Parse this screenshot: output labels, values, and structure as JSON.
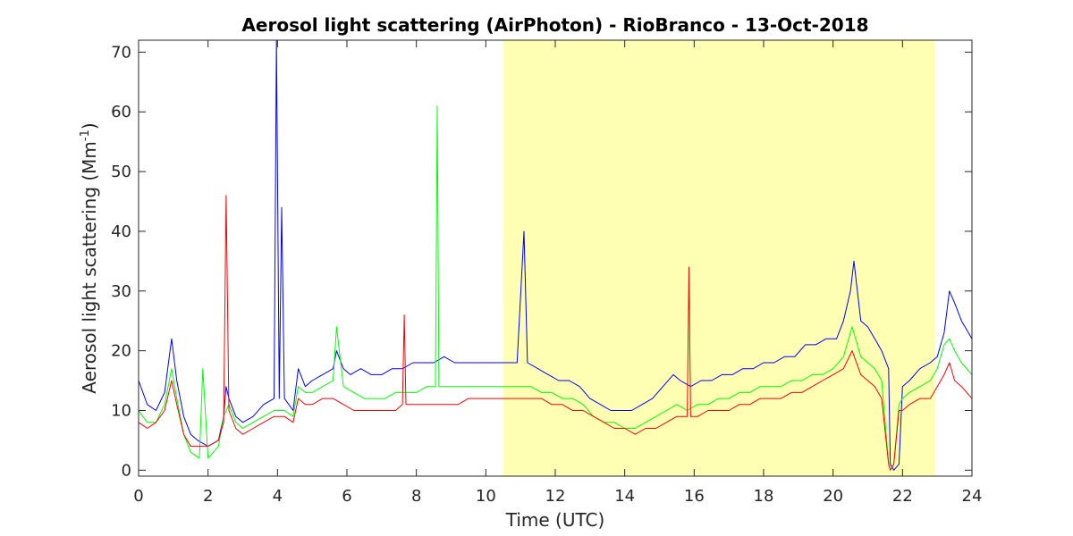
{
  "chart_data": {
    "type": "line",
    "title": "Aerosol light scattering (AirPhoton) - RioBranco - 13-Oct-2018",
    "xlabel": "Time (UTC)",
    "ylabel_main": "Aerosol light scattering (Mm",
    "ylabel_sup": "-1",
    "ylabel_close": ")",
    "xlim": [
      0,
      24
    ],
    "ylim": [
      -1,
      72
    ],
    "xticks": [
      0,
      2,
      4,
      6,
      8,
      10,
      12,
      14,
      16,
      18,
      20,
      22,
      24
    ],
    "yticks": [
      0,
      10,
      20,
      30,
      40,
      50,
      60,
      70
    ],
    "highlight_span": [
      10.5,
      22.95
    ],
    "highlight_color": "#ffffb3",
    "grid": false,
    "series": [
      {
        "color": "#0000ff",
        "x": [
          0.0,
          0.25,
          0.5,
          0.75,
          0.95,
          1.1,
          1.3,
          1.5,
          1.7,
          2.0,
          2.3,
          2.45,
          2.52,
          2.6,
          2.8,
          3.0,
          3.3,
          3.6,
          3.9,
          3.97,
          4.05,
          4.12,
          4.2,
          4.45,
          4.6,
          4.8,
          5.0,
          5.3,
          5.6,
          5.7,
          5.9,
          6.1,
          6.4,
          6.7,
          7.0,
          7.3,
          7.6,
          7.9,
          8.2,
          8.5,
          8.8,
          9.1,
          9.4,
          9.7,
          10.0,
          10.3,
          10.6,
          10.9,
          11.1,
          11.2,
          11.5,
          11.8,
          12.1,
          12.4,
          12.7,
          13.0,
          13.3,
          13.6,
          13.9,
          14.2,
          14.5,
          14.8,
          15.1,
          15.4,
          15.6,
          15.9,
          16.2,
          16.5,
          16.8,
          17.1,
          17.4,
          17.7,
          18.0,
          18.3,
          18.6,
          18.9,
          19.2,
          19.5,
          19.8,
          20.1,
          20.3,
          20.5,
          20.6,
          20.8,
          21.0,
          21.2,
          21.4,
          21.6,
          21.65,
          21.75,
          21.9,
          22.0,
          22.2,
          22.5,
          22.8,
          23.0,
          23.2,
          23.35,
          23.5,
          23.7,
          24.0
        ],
        "y": [
          15,
          11,
          10,
          13,
          22,
          15,
          9,
          6,
          5,
          4,
          5,
          9,
          14,
          12,
          9,
          8,
          9,
          11,
          12,
          72,
          12,
          44,
          12,
          10,
          17,
          14,
          15,
          16,
          17,
          20,
          17,
          16,
          17,
          16,
          16,
          17,
          17,
          18,
          18,
          18,
          19,
          18,
          18,
          18,
          18,
          18,
          18,
          18,
          40,
          18,
          17,
          16,
          15,
          15,
          14,
          12,
          11,
          10,
          10,
          10,
          11,
          12,
          14,
          16,
          15,
          14,
          15,
          15,
          16,
          16,
          17,
          17,
          18,
          18,
          19,
          19,
          21,
          21,
          22,
          22,
          25,
          30,
          35,
          25,
          24,
          22,
          20,
          17,
          1,
          0,
          1,
          14,
          15,
          17,
          18,
          19,
          23,
          30,
          28,
          25,
          22
        ]
      },
      {
        "color": "#00ff00",
        "x": [
          0.0,
          0.25,
          0.5,
          0.75,
          0.95,
          1.1,
          1.3,
          1.5,
          1.75,
          1.85,
          2.0,
          2.3,
          2.45,
          2.6,
          2.8,
          3.0,
          3.3,
          3.6,
          3.9,
          4.2,
          4.45,
          4.6,
          4.8,
          5.0,
          5.3,
          5.6,
          5.7,
          5.9,
          6.2,
          6.5,
          6.8,
          7.1,
          7.4,
          7.7,
          8.0,
          8.3,
          8.55,
          8.6,
          8.65,
          8.9,
          9.2,
          9.5,
          9.8,
          10.1,
          10.4,
          10.7,
          11.0,
          11.3,
          11.6,
          11.9,
          12.2,
          12.5,
          12.8,
          13.1,
          13.4,
          13.7,
          14.0,
          14.3,
          14.6,
          14.9,
          15.2,
          15.5,
          15.8,
          16.1,
          16.4,
          16.7,
          17.0,
          17.3,
          17.6,
          17.9,
          18.2,
          18.5,
          18.8,
          19.1,
          19.4,
          19.7,
          20.0,
          20.3,
          20.55,
          20.8,
          21.0,
          21.2,
          21.4,
          21.6,
          21.65,
          21.75,
          21.9,
          22.0,
          22.2,
          22.5,
          22.8,
          23.0,
          23.2,
          23.35,
          23.5,
          23.7,
          24.0
        ],
        "y": [
          10,
          8,
          8,
          11,
          17,
          12,
          6,
          3,
          2,
          17,
          2,
          4,
          9,
          11,
          8,
          7,
          8,
          9,
          10,
          10,
          9,
          14,
          13,
          13,
          14,
          15,
          24,
          14,
          13,
          12,
          12,
          12,
          13,
          13,
          13,
          14,
          14,
          61,
          14,
          14,
          14,
          14,
          14,
          14,
          14,
          14,
          14,
          14,
          13,
          13,
          12,
          12,
          11,
          9,
          8,
          8,
          7,
          7,
          8,
          9,
          10,
          11,
          10,
          11,
          11,
          12,
          12,
          13,
          13,
          14,
          14,
          14,
          15,
          15,
          16,
          16,
          17,
          19,
          24,
          19,
          18,
          17,
          15,
          1,
          0,
          1,
          11,
          12,
          13,
          14,
          15,
          17,
          21,
          22,
          20,
          18,
          16
        ]
      },
      {
        "color": "#ff0000",
        "x": [
          0.0,
          0.25,
          0.5,
          0.75,
          0.95,
          1.1,
          1.3,
          1.5,
          1.75,
          2.0,
          2.3,
          2.45,
          2.52,
          2.6,
          2.8,
          3.0,
          3.3,
          3.6,
          3.9,
          4.2,
          4.45,
          4.6,
          4.8,
          5.0,
          5.3,
          5.6,
          5.9,
          6.2,
          6.5,
          6.8,
          7.1,
          7.4,
          7.6,
          7.65,
          7.7,
          8.0,
          8.3,
          8.6,
          8.9,
          9.2,
          9.5,
          9.8,
          10.1,
          10.4,
          10.7,
          11.0,
          11.3,
          11.6,
          11.9,
          12.2,
          12.5,
          12.8,
          13.1,
          13.4,
          13.7,
          14.0,
          14.3,
          14.6,
          14.9,
          15.2,
          15.5,
          15.8,
          15.85,
          15.9,
          16.1,
          16.4,
          16.7,
          17.0,
          17.3,
          17.6,
          17.9,
          18.2,
          18.5,
          18.8,
          19.1,
          19.4,
          19.7,
          20.0,
          20.3,
          20.55,
          20.8,
          21.0,
          21.2,
          21.4,
          21.6,
          21.65,
          21.75,
          21.9,
          22.0,
          22.2,
          22.5,
          22.8,
          23.0,
          23.2,
          23.35,
          23.5,
          23.7,
          24.0
        ],
        "y": [
          8,
          7,
          8,
          10,
          15,
          11,
          6,
          4,
          4,
          4,
          5,
          8,
          46,
          10,
          7,
          6,
          7,
          8,
          9,
          9,
          8,
          12,
          11,
          11,
          12,
          12,
          11,
          10,
          10,
          10,
          10,
          10,
          11,
          26,
          11,
          11,
          11,
          11,
          11,
          11,
          12,
          12,
          12,
          12,
          12,
          12,
          12,
          12,
          11,
          11,
          10,
          10,
          9,
          8,
          7,
          7,
          6,
          7,
          7,
          8,
          9,
          9,
          34,
          9,
          9,
          10,
          10,
          10,
          11,
          11,
          12,
          12,
          12,
          13,
          13,
          14,
          15,
          16,
          17,
          20,
          16,
          15,
          14,
          12,
          1,
          0,
          1,
          10,
          10,
          11,
          12,
          12,
          14,
          16,
          18,
          15,
          14,
          12
        ]
      }
    ]
  }
}
